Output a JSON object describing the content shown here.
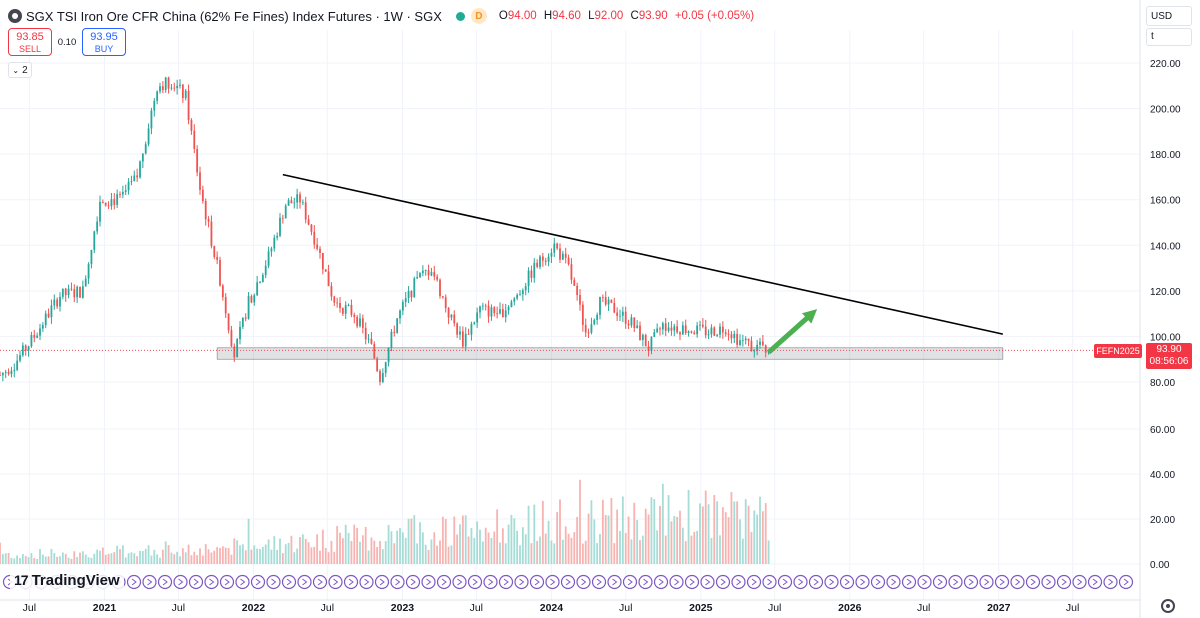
{
  "header": {
    "title": "SGX TSI Iron Ore CFR China (62% Fe Fines) Index Futures · 1W · SGX",
    "badge": "D",
    "ohlc": {
      "o_label": "O",
      "o": "94.00",
      "h_label": "H",
      "h": "94.60",
      "l_label": "L",
      "l": "92.00",
      "c_label": "C",
      "c": "93.90",
      "change": "+0.05 (+0.05%)"
    }
  },
  "trade": {
    "sell_price": "93.85",
    "sell_label": "SELL",
    "spread": "0.10",
    "buy_price": "93.95",
    "buy_label": "BUY"
  },
  "indicators": {
    "count": "2"
  },
  "axis_controls": {
    "currency": "USD",
    "unit": "t"
  },
  "price_tag": {
    "symbol": "FEFN2025",
    "price": "93.90",
    "countdown": "08:56:06"
  },
  "branding": {
    "logo_text": "TradingView"
  },
  "colors": {
    "up": "#26a69a",
    "down": "#ef5350",
    "up_volume": "#a6dcd6",
    "down_volume": "#f7b3b1",
    "trendline": "#000000",
    "arrow": "#4caf50",
    "last_price": "#f23645"
  },
  "chart_data": {
    "type": "candlestick",
    "ylim": [
      70,
      230
    ],
    "yticks": [
      80,
      100,
      120,
      140,
      160,
      180,
      200,
      220
    ],
    "ytick_labels": [
      "80.00",
      "100.00",
      "120.00",
      "140.00",
      "160.00",
      "180.00",
      "200.00",
      "220.00"
    ],
    "volume_ylim": [
      0,
      75
    ],
    "volume_ticks": [
      0,
      20,
      40,
      60
    ],
    "volume_tick_labels": [
      "0.00",
      "20.00",
      "40.00",
      "60.00"
    ],
    "xlim": [
      "2020-04-20",
      "2027-12-13"
    ],
    "xticks": [
      "2020-07-01",
      "2021-01-01",
      "2021-07-01",
      "2022-01-01",
      "2022-07-01",
      "2023-01-01",
      "2023-07-01",
      "2024-01-01",
      "2024-07-01",
      "2025-01-01",
      "2025-07-01",
      "2026-01-01",
      "2026-07-01",
      "2027-01-01",
      "2027-07-01"
    ],
    "xtick_labels": [
      "Jul",
      "2021",
      "Jul",
      "2022",
      "Jul",
      "2023",
      "Jul",
      "2024",
      "Jul",
      "2025",
      "Jul",
      "2026",
      "Jul",
      "2027",
      "Jul"
    ],
    "price_path": [
      [
        "2020-04-20",
        83
      ],
      [
        "2020-05-25",
        88
      ],
      [
        "2020-07-13",
        100
      ],
      [
        "2020-09-14",
        118
      ],
      [
        "2020-11-09",
        120
      ],
      [
        "2020-12-21",
        160
      ],
      [
        "2021-02-08",
        160
      ],
      [
        "2021-03-22",
        170
      ],
      [
        "2021-05-10",
        210
      ],
      [
        "2021-06-14",
        212
      ],
      [
        "2021-07-19",
        205
      ],
      [
        "2021-08-23",
        165
      ],
      [
        "2021-10-11",
        125
      ],
      [
        "2021-11-15",
        92
      ],
      [
        "2021-12-20",
        115
      ],
      [
        "2022-02-07",
        135
      ],
      [
        "2022-03-21",
        158
      ],
      [
        "2022-04-25",
        160
      ],
      [
        "2022-06-06",
        140
      ],
      [
        "2022-07-18",
        115
      ],
      [
        "2022-09-05",
        110
      ],
      [
        "2022-10-17",
        95
      ],
      [
        "2022-11-07",
        82
      ],
      [
        "2022-12-19",
        108
      ],
      [
        "2023-02-06",
        125
      ],
      [
        "2023-03-13",
        130
      ],
      [
        "2023-04-24",
        110
      ],
      [
        "2023-05-29",
        98
      ],
      [
        "2023-07-10",
        112
      ],
      [
        "2023-08-28",
        110
      ],
      [
        "2023-10-09",
        118
      ],
      [
        "2023-11-20",
        130
      ],
      [
        "2024-01-08",
        140
      ],
      [
        "2024-02-12",
        130
      ],
      [
        "2024-03-25",
        102
      ],
      [
        "2024-04-29",
        115
      ],
      [
        "2024-06-03",
        112
      ],
      [
        "2024-07-15",
        106
      ],
      [
        "2024-08-26",
        95
      ],
      [
        "2024-09-30",
        105
      ],
      [
        "2024-11-04",
        104
      ],
      [
        "2024-12-09",
        103
      ],
      [
        "2025-01-20",
        102
      ],
      [
        "2025-03-03",
        104
      ],
      [
        "2025-04-07",
        98
      ],
      [
        "2025-05-12",
        96
      ],
      [
        "2025-06-16",
        93.9
      ]
    ],
    "volume_path": [
      [
        "2020-04-20",
        4
      ],
      [
        "2020-12-01",
        5
      ],
      [
        "2021-06-01",
        6
      ],
      [
        "2022-01-01",
        8
      ],
      [
        "2022-07-01",
        11
      ],
      [
        "2023-01-01",
        13
      ],
      [
        "2023-07-01",
        15
      ],
      [
        "2024-01-01",
        19
      ],
      [
        "2024-07-01",
        20
      ],
      [
        "2025-01-01",
        22
      ],
      [
        "2025-06-16",
        20
      ]
    ],
    "trendline": {
      "start": [
        "2022-03-14",
        171
      ],
      "end": [
        "2027-01-11",
        101
      ]
    },
    "support_zone": {
      "x_start": "2021-10-04",
      "x_end": "2027-01-11",
      "y_low": 90,
      "y_high": 95
    },
    "projection_arrow": {
      "start": [
        "2025-06-16",
        93
      ],
      "end": [
        "2025-10-13",
        112
      ]
    },
    "last_price": 93.9
  }
}
